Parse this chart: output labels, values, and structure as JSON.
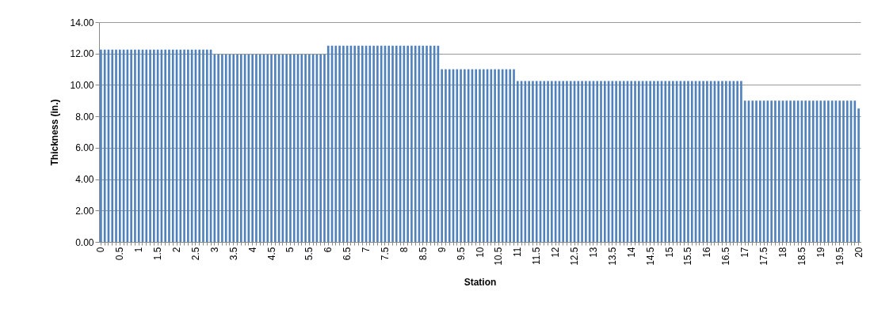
{
  "chart_data": {
    "type": "bar",
    "xlabel": "Station",
    "ylabel": "Thickness  (in.)",
    "color": "#4f81bd",
    "grid": "y",
    "ylim": [
      0,
      14
    ],
    "yticks": [
      {
        "value": 0,
        "label": "0.00"
      },
      {
        "value": 2,
        "label": "2.00"
      },
      {
        "value": 4,
        "label": "4.00"
      },
      {
        "value": 6,
        "label": "6.00"
      },
      {
        "value": 8,
        "label": "8.00"
      },
      {
        "value": 10,
        "label": "10.00"
      },
      {
        "value": 12,
        "label": "12.00"
      },
      {
        "value": 14,
        "label": "14.00"
      }
    ],
    "categories": [
      "0",
      null,
      null,
      null,
      null,
      "0.5",
      null,
      null,
      null,
      null,
      "1",
      null,
      null,
      null,
      null,
      "1.5",
      null,
      null,
      null,
      null,
      "2",
      null,
      null,
      null,
      null,
      "2.5",
      null,
      null,
      null,
      null,
      "3",
      null,
      null,
      null,
      null,
      "3.5",
      null,
      null,
      null,
      null,
      "4",
      null,
      null,
      null,
      null,
      "4.5",
      null,
      null,
      null,
      null,
      "5",
      null,
      null,
      null,
      null,
      "5.5",
      null,
      null,
      null,
      null,
      "6",
      null,
      null,
      null,
      null,
      "6.5",
      null,
      null,
      null,
      null,
      "7",
      null,
      null,
      null,
      null,
      "7.5",
      null,
      null,
      null,
      null,
      "8",
      null,
      null,
      null,
      null,
      "8.5",
      null,
      null,
      null,
      null,
      "9",
      null,
      null,
      null,
      null,
      "9.5",
      null,
      null,
      null,
      null,
      "10",
      null,
      null,
      null,
      null,
      "10.5",
      null,
      null,
      null,
      null,
      "11",
      null,
      null,
      null,
      null,
      "11.5",
      null,
      null,
      null,
      null,
      "12",
      null,
      null,
      null,
      null,
      "12.5",
      null,
      null,
      null,
      null,
      "13",
      null,
      null,
      null,
      null,
      "13.5",
      null,
      null,
      null,
      null,
      "14",
      null,
      null,
      null,
      null,
      "14.5",
      null,
      null,
      null,
      null,
      "15",
      null,
      null,
      null,
      null,
      "15.5",
      null,
      null,
      null,
      null,
      "16",
      null,
      null,
      null,
      null,
      "16.5",
      null,
      null,
      null,
      null,
      "17",
      null,
      null,
      null,
      null,
      "17.5",
      null,
      null,
      null,
      null,
      "18",
      null,
      null,
      null,
      null,
      "18.5",
      null,
      null,
      null,
      null,
      "19",
      null,
      null,
      null,
      null,
      "19.5",
      null,
      null,
      null,
      null,
      "20"
    ],
    "values": [
      12.25,
      12.25,
      12.25,
      12.25,
      12.25,
      12.25,
      12.25,
      12.25,
      12.25,
      12.25,
      12.25,
      12.25,
      12.25,
      12.25,
      12.25,
      12.25,
      12.25,
      12.25,
      12.25,
      12.25,
      12.25,
      12.25,
      12.25,
      12.25,
      12.25,
      12.25,
      12.25,
      12.25,
      12.25,
      12.25,
      11.95,
      11.95,
      11.95,
      11.95,
      11.95,
      11.95,
      11.95,
      11.95,
      11.95,
      11.95,
      11.95,
      11.95,
      11.95,
      11.95,
      11.95,
      11.95,
      11.95,
      11.95,
      11.95,
      11.95,
      11.95,
      11.95,
      11.95,
      11.95,
      11.95,
      11.95,
      11.95,
      11.95,
      11.95,
      11.95,
      12.5,
      12.5,
      12.5,
      12.5,
      12.5,
      12.5,
      12.5,
      12.5,
      12.5,
      12.5,
      12.5,
      12.5,
      12.5,
      12.5,
      12.5,
      12.5,
      12.5,
      12.5,
      12.5,
      12.5,
      12.5,
      12.5,
      12.5,
      12.5,
      12.5,
      12.5,
      12.5,
      12.5,
      12.5,
      12.5,
      11.0,
      11.0,
      11.0,
      11.0,
      11.0,
      11.0,
      11.0,
      11.0,
      11.0,
      11.0,
      11.0,
      11.0,
      11.0,
      11.0,
      11.0,
      11.0,
      11.0,
      11.0,
      11.0,
      11.0,
      10.25,
      10.25,
      10.25,
      10.25,
      10.25,
      10.25,
      10.25,
      10.25,
      10.25,
      10.25,
      10.25,
      10.25,
      10.25,
      10.25,
      10.25,
      10.25,
      10.25,
      10.25,
      10.25,
      10.25,
      10.25,
      10.25,
      10.25,
      10.25,
      10.25,
      10.25,
      10.25,
      10.25,
      10.25,
      10.25,
      10.25,
      10.25,
      10.25,
      10.25,
      10.25,
      10.25,
      10.25,
      10.25,
      10.25,
      10.25,
      10.25,
      10.25,
      10.25,
      10.25,
      10.25,
      10.25,
      10.25,
      10.25,
      10.25,
      10.25,
      10.25,
      10.25,
      10.25,
      10.25,
      10.25,
      10.25,
      10.25,
      10.25,
      10.25,
      10.25,
      9.0,
      9.0,
      9.0,
      9.0,
      9.0,
      9.0,
      9.0,
      9.0,
      9.0,
      9.0,
      9.0,
      9.0,
      9.0,
      9.0,
      9.0,
      9.0,
      9.0,
      9.0,
      9.0,
      9.0,
      9.0,
      9.0,
      9.0,
      9.0,
      9.0,
      9.0,
      9.0,
      9.0,
      9.0,
      9.0,
      8.5
    ]
  }
}
